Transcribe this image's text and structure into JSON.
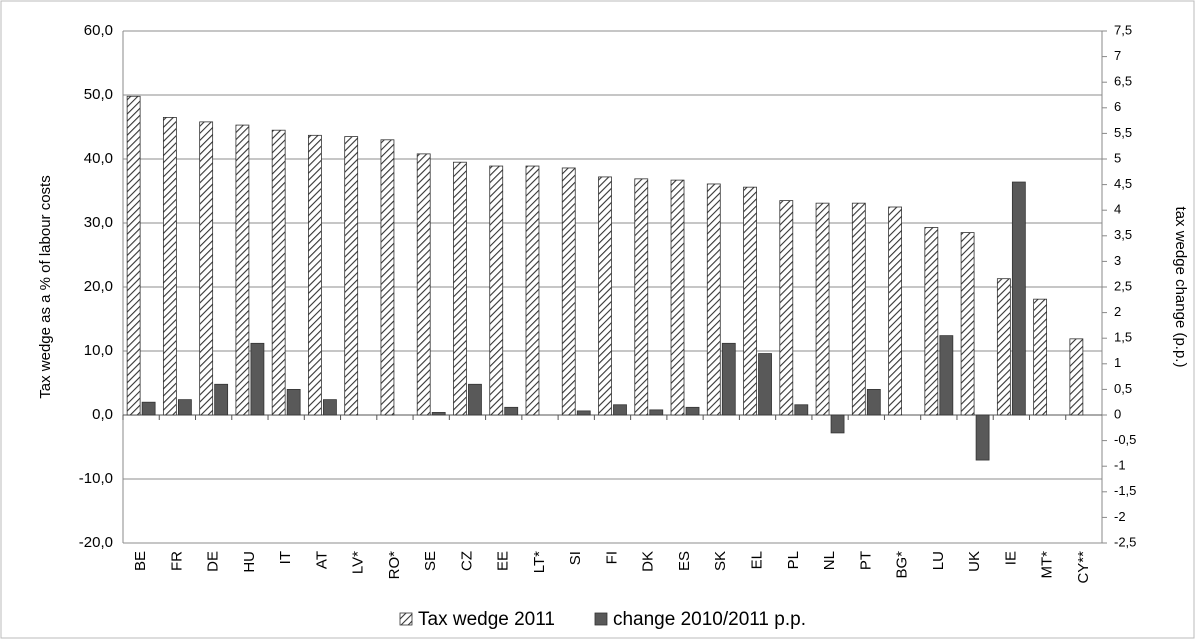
{
  "chart_data": {
    "type": "bar",
    "categories": [
      "BE",
      "FR",
      "DE",
      "HU",
      "IT",
      "AT",
      "LV*",
      "RO*",
      "SE",
      "CZ",
      "EE",
      "LT*",
      "SI",
      "FI",
      "DK",
      "ES",
      "SK",
      "EL",
      "PL",
      "NL",
      "PT",
      "BG*",
      "LU",
      "UK",
      "IE",
      "MT*",
      "CY**"
    ],
    "ylabel": "Tax wedge as a % of labour costs",
    "y2label": "tax wedge change (p.p.)",
    "series": [
      {
        "name": "Tax wedge 2011",
        "color": "#333333",
        "pattern": "hatch",
        "axis": "y",
        "values": [
          49.8,
          46.5,
          45.8,
          45.3,
          44.5,
          43.7,
          43.5,
          43.0,
          40.8,
          39.5,
          38.9,
          38.9,
          38.6,
          37.2,
          36.9,
          36.7,
          36.1,
          35.6,
          33.5,
          33.1,
          33.1,
          32.5,
          29.3,
          28.5,
          21.3,
          18.1,
          11.9
        ]
      },
      {
        "name": "change 2010/2011 p.p.",
        "color": "#595959",
        "pattern": "solid",
        "axis": "y2",
        "values": [
          0.25,
          0.3,
          0.6,
          1.4,
          0.5,
          0.3,
          null,
          null,
          0.05,
          0.6,
          0.15,
          null,
          0.08,
          0.2,
          0.1,
          0.15,
          1.4,
          1.2,
          0.2,
          -0.35,
          0.5,
          null,
          1.55,
          -0.88,
          4.55,
          null,
          null
        ]
      }
    ],
    "ylim": [
      -20,
      60
    ],
    "yticks": [
      {
        "value": -20,
        "label": "-20,0"
      },
      {
        "value": -10,
        "label": "-10,0"
      },
      {
        "value": 0,
        "label": "0,0"
      },
      {
        "value": 10,
        "label": "10,0"
      },
      {
        "value": 20,
        "label": "20,0"
      },
      {
        "value": 30,
        "label": "30,0"
      },
      {
        "value": 40,
        "label": "40,0"
      },
      {
        "value": 50,
        "label": "50,0"
      },
      {
        "value": 60,
        "label": "60,0"
      }
    ],
    "y2lim": [
      -2.5,
      7.5
    ],
    "y2ticks": [
      {
        "value": -2.5,
        "label": "-2,5"
      },
      -2,
      {
        "value": -1.5,
        "label": "-1,5"
      },
      -1,
      {
        "value": -0.5,
        "label": "-0,5"
      },
      0,
      {
        "value": 0.5,
        "label": "0,5"
      },
      1,
      {
        "value": 1.5,
        "label": "1,5"
      },
      2,
      {
        "value": 2.5,
        "label": "2,5"
      },
      3,
      {
        "value": 3.5,
        "label": "3,5"
      },
      4,
      {
        "value": 4.5,
        "label": "4,5"
      },
      5,
      {
        "value": 5.5,
        "label": "5,5"
      },
      6,
      {
        "value": 6.5,
        "label": "6,5"
      },
      7,
      {
        "value": 7.5,
        "label": "7,5"
      }
    ],
    "grid": true,
    "legend": "bottom"
  }
}
